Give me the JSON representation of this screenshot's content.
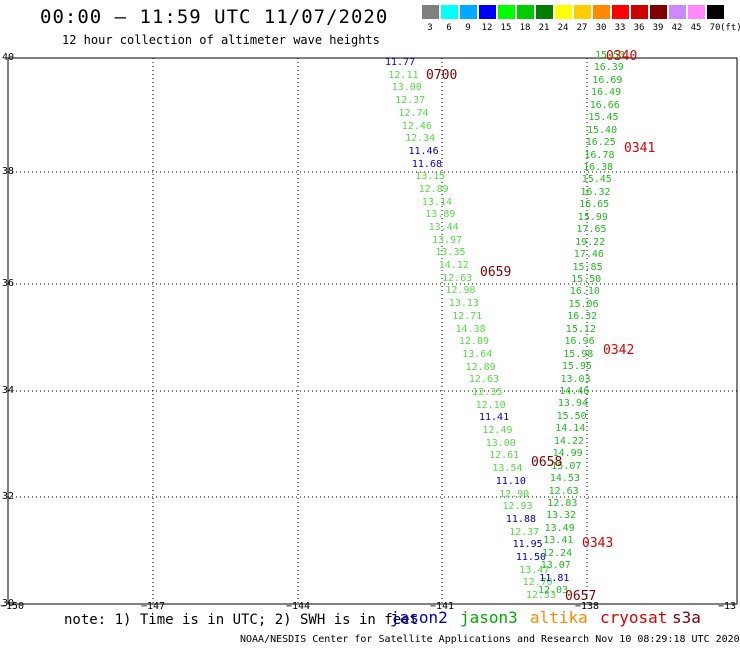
{
  "title": "00:00 – 11:59 UTC 11/07/2020",
  "subtitle": "12 hour collection of altimeter wave heights",
  "scale": {
    "colors": [
      "#7f7f7f",
      "#00ffff",
      "#00aaff",
      "#0000ff",
      "#00ff00",
      "#00cc00",
      "#008000",
      "#ffff00",
      "#ffcc00",
      "#ff8800",
      "#ff0000",
      "#cc0000",
      "#800000",
      "#cc88ff",
      "#ff88ff",
      "#000000"
    ],
    "labels": [
      "3",
      "6",
      "9",
      "12",
      "15",
      "18",
      "21",
      "24",
      "27",
      "30",
      "33",
      "36",
      "39",
      "42",
      "45",
      "70"
    ],
    "unit": "(ft)"
  },
  "axes": {
    "lat_labels": [
      "40",
      "38",
      "36",
      "34",
      "32",
      "30"
    ],
    "lon_labels": [
      "−150",
      "−147",
      "−144",
      "−141",
      "−138",
      "−13"
    ]
  },
  "tracks": [
    {
      "name": "left",
      "values": [
        [
          "11.77",
          "jason2"
        ],
        [
          "12.11",
          "jason3"
        ],
        [
          "13.00",
          "jason3"
        ],
        [
          "12.37",
          "jason3"
        ],
        [
          "12.74",
          "jason3"
        ],
        [
          "12.46",
          "jason3"
        ],
        [
          "12.34",
          "jason3"
        ],
        [
          "11.46",
          "jason2"
        ],
        [
          "11.68",
          "jason2"
        ],
        [
          "13.15",
          "jason3"
        ],
        [
          "12.89",
          "jason3"
        ],
        [
          "13.14",
          "jason3"
        ],
        [
          "13.89",
          "jason3"
        ],
        [
          "13.44",
          "jason3"
        ],
        [
          "13.97",
          "jason3"
        ],
        [
          "13.35",
          "jason3"
        ],
        [
          "14.12",
          "jason3"
        ],
        [
          "12.63",
          "jason3"
        ],
        [
          "12.98",
          "jason3"
        ],
        [
          "13.13",
          "jason3"
        ],
        [
          "12.71",
          "jason3"
        ],
        [
          "14.38",
          "jason3"
        ],
        [
          "12.89",
          "jason3"
        ],
        [
          "13.64",
          "jason3"
        ],
        [
          "12.89",
          "jason3"
        ],
        [
          "12.63",
          "jason3"
        ],
        [
          "12.35",
          "jason3"
        ],
        [
          "12.10",
          "jason3"
        ],
        [
          "11.41",
          "jason2"
        ],
        [
          "12.49",
          "jason3"
        ],
        [
          "13.00",
          "jason3"
        ],
        [
          "12.61",
          "jason3"
        ],
        [
          "13.54",
          "jason3"
        ],
        [
          "11.10",
          "jason2"
        ],
        [
          "12.90",
          "jason3"
        ],
        [
          "12.93",
          "jason3"
        ],
        [
          "11.88",
          "jason2"
        ],
        [
          "12.37",
          "jason3"
        ],
        [
          "11.95",
          "jason2"
        ],
        [
          "11.50",
          "jason2"
        ],
        [
          "13.47",
          "jason3"
        ],
        [
          "12.70",
          "jason3"
        ],
        [
          "12.53",
          "jason3"
        ]
      ]
    },
    {
      "name": "right",
      "values": [
        [
          "15.53",
          "jason3"
        ],
        [
          "16.39",
          "jason3"
        ],
        [
          "16.69",
          "jason3"
        ],
        [
          "16.49",
          "jason3"
        ],
        [
          "16.66",
          "jason3"
        ],
        [
          "15.45",
          "jason3"
        ],
        [
          "15.40",
          "jason3"
        ],
        [
          "16.25",
          "jason3"
        ],
        [
          "16.78",
          "jason3"
        ],
        [
          "16.38",
          "jason3"
        ],
        [
          "15.45",
          "jason3"
        ],
        [
          "16.32",
          "jason3"
        ],
        [
          "16.65",
          "jason3"
        ],
        [
          "15.99",
          "jason3"
        ],
        [
          "17.65",
          "jason3"
        ],
        [
          "19.22",
          "jason3"
        ],
        [
          "17.46",
          "jason3"
        ],
        [
          "15.85",
          "jason3"
        ],
        [
          "15.50",
          "jason3"
        ],
        [
          "16.10",
          "jason3"
        ],
        [
          "15.06",
          "jason3"
        ],
        [
          "16.32",
          "jason3"
        ],
        [
          "15.12",
          "jason3"
        ],
        [
          "16.96",
          "jason3"
        ],
        [
          "15.98",
          "jason3"
        ],
        [
          "15.95",
          "jason3"
        ],
        [
          "13.03",
          "jason3"
        ],
        [
          "14.46",
          "jason3"
        ],
        [
          "13.94",
          "jason3"
        ],
        [
          "15.50",
          "jason3"
        ],
        [
          "14.14",
          "jason3"
        ],
        [
          "14.22",
          "jason3"
        ],
        [
          "14.99",
          "jason3"
        ],
        [
          "15.07",
          "jason3"
        ],
        [
          "14.53",
          "jason3"
        ],
        [
          "12.63",
          "jason3"
        ],
        [
          "12.83",
          "jason3"
        ],
        [
          "13.32",
          "jason3"
        ],
        [
          "13.49",
          "jason3"
        ],
        [
          "13.41",
          "jason3"
        ],
        [
          "12.24",
          "jason3"
        ],
        [
          "13.07",
          "jason3"
        ],
        [
          "11.81",
          "jason2"
        ],
        [
          "12.03",
          "jason3"
        ]
      ]
    }
  ],
  "time_tags": [
    {
      "text": "0700",
      "sat": "jason3"
    },
    {
      "text": "0659",
      "sat": "jason3"
    },
    {
      "text": "0658",
      "sat": "jason3"
    },
    {
      "text": "0657",
      "sat": "jason3"
    },
    {
      "text": "0340",
      "sat": "cryosat"
    },
    {
      "text": "0341",
      "sat": "cryosat"
    },
    {
      "text": "0342",
      "sat": "cryosat"
    },
    {
      "text": "0343",
      "sat": "cryosat"
    }
  ],
  "sat_colors": {
    "jason2": "#0000cc",
    "jason3": "#00aa00",
    "jason3_val": "#55dd44",
    "altika": "#ff8800",
    "cryosat": "#dd0000",
    "s3a": "#800000"
  },
  "note": "note: 1) Time is in UTC; 2) SWH is in feet",
  "legend": [
    {
      "label": "jason2",
      "color": "#0000cc"
    },
    {
      "label": "jason3",
      "color": "#00aa00"
    },
    {
      "label": "altika",
      "color": "#ff8800"
    },
    {
      "label": "cryosat",
      "color": "#dd0000"
    },
    {
      "label": "s3a",
      "color": "#800000"
    }
  ],
  "credit": "NOAA/NESDIS Center for Satellite Applications and Research    Nov 10 08:29:18 UTC 2020"
}
